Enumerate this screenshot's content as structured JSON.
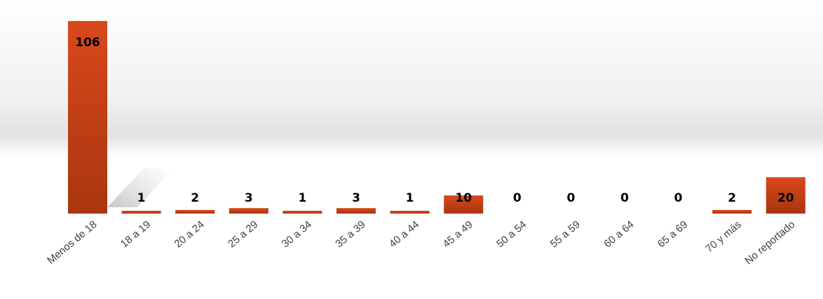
{
  "chart_data": {
    "type": "bar",
    "categories": [
      "Menos de 18",
      "18 a 19",
      "20 a 24",
      "25 a 29",
      "30 a 34",
      "35 a 39",
      "40 a 44",
      "45 a 49",
      "50 a 54",
      "55 a 59",
      "60 a 64",
      "65 a 69",
      "70 y más",
      "No reportado"
    ],
    "values": [
      106,
      1,
      2,
      3,
      1,
      3,
      1,
      10,
      0,
      0,
      0,
      0,
      2,
      20
    ],
    "data_labels": [
      "106",
      "1",
      "2",
      "3",
      "1",
      "3",
      "1",
      "10",
      "0",
      "0",
      "0",
      "0",
      "2",
      "20"
    ],
    "title": "",
    "xlabel": "",
    "ylabel": "",
    "ylim": [
      0,
      106
    ],
    "grid": false,
    "legend": "none",
    "colors": {
      "bar_top": "#d9481c",
      "bar_bottom": "#a8350f",
      "background_top": "#ffffff",
      "background_mid": "#e6e6e6"
    }
  }
}
